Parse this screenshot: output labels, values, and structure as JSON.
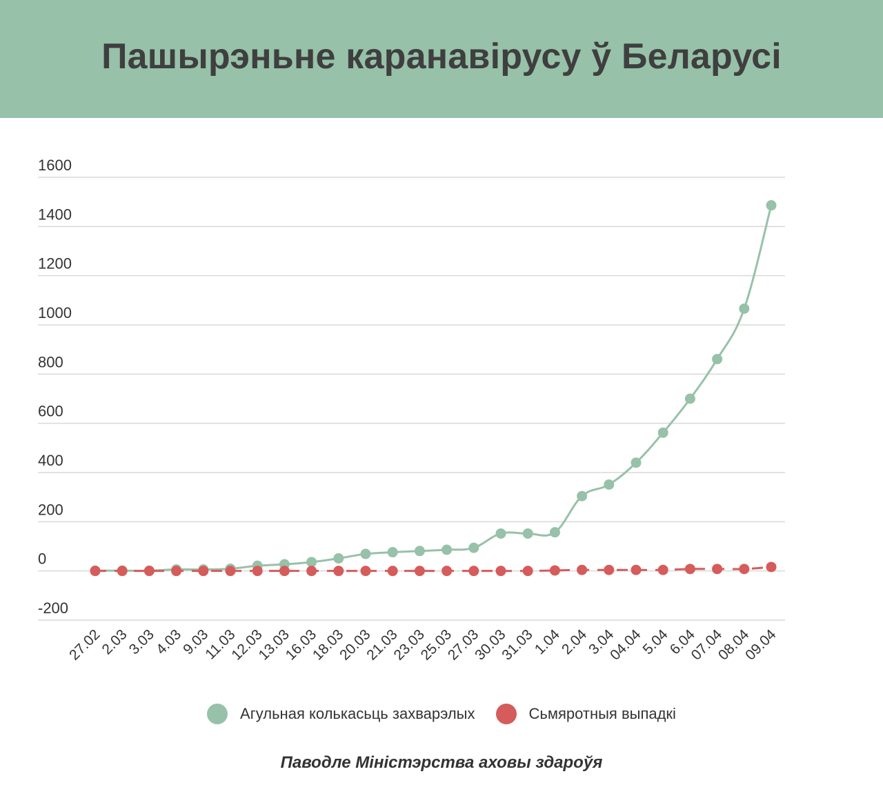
{
  "header": {
    "title": "Пашырэньне каранавірусу ў Беларусі"
  },
  "source_note": "Паводле Міністэрства аховы здароўя",
  "chart_data": {
    "type": "line",
    "title": "Пашырэньне каранавірусу ў Беларусі",
    "xlabel": "",
    "ylabel": "",
    "ylim": [
      -200,
      1600
    ],
    "yticks": [
      "1600",
      "1400",
      "1200",
      "1000",
      "800",
      "600",
      "400",
      "200",
      "0",
      "-200"
    ],
    "grid": true,
    "legend_position": "bottom",
    "categories": [
      "27.02",
      "2.03",
      "3.03",
      "4.03",
      "9.03",
      "11.03",
      "12.03",
      "13.03",
      "16.03",
      "18.03",
      "20.03",
      "21.03",
      "23.03",
      "25.03",
      "27.03",
      "30.03",
      "31.03",
      "1.04",
      "2.04",
      "3.04",
      "04.04",
      "5.04",
      "6.04",
      "07.04",
      "08.04",
      "09.04"
    ],
    "series": [
      {
        "name": "Агульная колькасьць захварэлых",
        "color": "#97c1a9",
        "values": [
          1,
          1,
          1,
          6,
          6,
          9,
          21,
          27,
          36,
          51,
          69,
          76,
          81,
          86,
          94,
          152,
          152,
          157,
          304,
          351,
          440,
          562,
          700,
          861,
          1066,
          1486
        ]
      },
      {
        "name": "Сьмяротныя выпадкі",
        "color": "#d65b5b",
        "values": [
          0,
          0,
          0,
          0,
          0,
          0,
          0,
          0,
          0,
          0,
          0,
          0,
          0,
          0,
          0,
          0,
          0,
          2,
          4,
          4,
          4,
          4,
          8,
          8,
          8,
          16
        ]
      }
    ]
  }
}
